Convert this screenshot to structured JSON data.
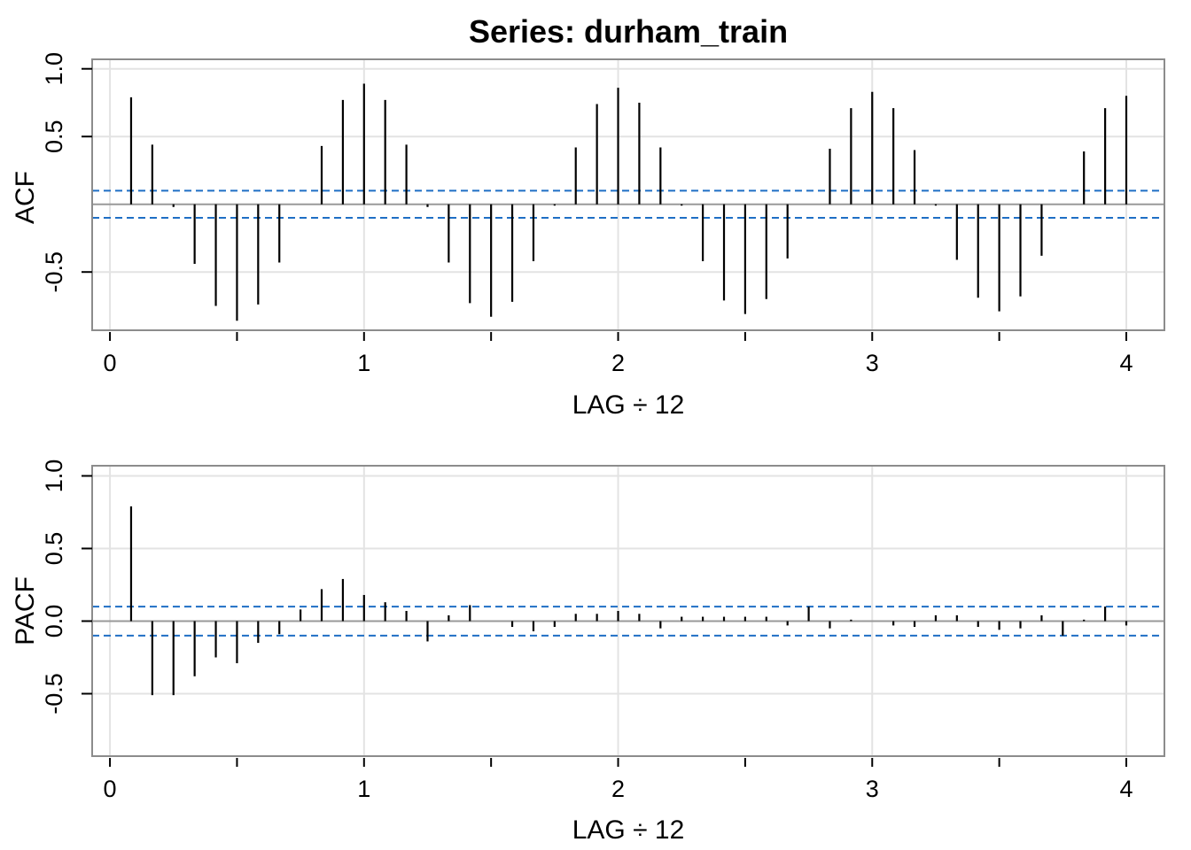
{
  "chart_data": [
    {
      "type": "bar",
      "subtype": "correlogram",
      "title": "Series:  durham_train",
      "ylabel": "ACF",
      "xlabel": "LAG ÷ 12",
      "xlim": [
        -0.07,
        4.15
      ],
      "ylim": [
        -0.93,
        1.07
      ],
      "xticks": [
        0,
        1,
        2,
        3,
        4
      ],
      "minor_xticks": [
        0.5,
        1.5,
        2.5,
        3.5
      ],
      "yticks": [
        -0.5,
        0.5,
        1.0
      ],
      "ytick_labels": [
        "-0.5",
        "0.5",
        "1.0"
      ],
      "grid": true,
      "confidence_bound": 0.1,
      "confidence_color": "#1f6fc5",
      "x": [
        0.0833,
        0.1667,
        0.25,
        0.3333,
        0.4167,
        0.5,
        0.5833,
        0.6667,
        0.75,
        0.8333,
        0.9167,
        1.0,
        1.0833,
        1.1667,
        1.25,
        1.3333,
        1.4167,
        1.5,
        1.5833,
        1.6667,
        1.75,
        1.8333,
        1.9167,
        2.0,
        2.0833,
        2.1667,
        2.25,
        2.3333,
        2.4167,
        2.5,
        2.5833,
        2.6667,
        2.75,
        2.8333,
        2.9167,
        3.0,
        3.0833,
        3.1667,
        3.25,
        3.3333,
        3.4167,
        3.5,
        3.5833,
        3.6667,
        3.75,
        3.8333,
        3.9167,
        4.0
      ],
      "values": [
        0.79,
        0.44,
        -0.02,
        -0.44,
        -0.75,
        -0.86,
        -0.74,
        -0.43,
        0.0,
        0.43,
        0.77,
        0.89,
        0.77,
        0.44,
        -0.02,
        -0.43,
        -0.73,
        -0.83,
        -0.72,
        -0.42,
        -0.01,
        0.42,
        0.74,
        0.86,
        0.75,
        0.42,
        -0.01,
        -0.42,
        -0.71,
        -0.81,
        -0.7,
        -0.4,
        0.0,
        0.41,
        0.71,
        0.83,
        0.71,
        0.4,
        -0.01,
        -0.41,
        -0.69,
        -0.79,
        -0.68,
        -0.38,
        0.0,
        0.39,
        0.71,
        0.8
      ]
    },
    {
      "type": "bar",
      "subtype": "correlogram",
      "title": "",
      "ylabel": "PACF",
      "xlabel": "LAG ÷ 12",
      "xlim": [
        -0.07,
        4.15
      ],
      "ylim": [
        -0.93,
        1.07
      ],
      "xticks": [
        0,
        1,
        2,
        3,
        4
      ],
      "minor_xticks": [
        0.5,
        1.5,
        2.5,
        3.5
      ],
      "yticks": [
        -0.5,
        0.0,
        0.5,
        1.0
      ],
      "ytick_labels": [
        "-0.5",
        "0.0",
        "0.5",
        "1.0"
      ],
      "grid": true,
      "confidence_bound": 0.1,
      "confidence_color": "#1f6fc5",
      "x": [
        0.0833,
        0.1667,
        0.25,
        0.3333,
        0.4167,
        0.5,
        0.5833,
        0.6667,
        0.75,
        0.8333,
        0.9167,
        1.0,
        1.0833,
        1.1667,
        1.25,
        1.3333,
        1.4167,
        1.5,
        1.5833,
        1.6667,
        1.75,
        1.8333,
        1.9167,
        2.0,
        2.0833,
        2.1667,
        2.25,
        2.3333,
        2.4167,
        2.5,
        2.5833,
        2.6667,
        2.75,
        2.8333,
        2.9167,
        3.0,
        3.0833,
        3.1667,
        3.25,
        3.3333,
        3.4167,
        3.5,
        3.5833,
        3.6667,
        3.75,
        3.8333,
        3.9167,
        4.0
      ],
      "values": [
        0.79,
        -0.51,
        -0.51,
        -0.38,
        -0.25,
        -0.29,
        -0.15,
        -0.09,
        0.08,
        0.22,
        0.29,
        0.18,
        0.13,
        0.07,
        -0.14,
        0.04,
        0.11,
        0.0,
        -0.04,
        -0.07,
        -0.04,
        0.05,
        0.05,
        0.07,
        0.05,
        -0.05,
        0.03,
        0.03,
        0.03,
        0.03,
        0.03,
        -0.03,
        0.1,
        -0.05,
        0.01,
        0.0,
        -0.03,
        -0.04,
        0.04,
        0.04,
        -0.04,
        -0.06,
        -0.05,
        0.04,
        -0.1,
        0.01,
        0.1,
        -0.03
      ]
    }
  ]
}
